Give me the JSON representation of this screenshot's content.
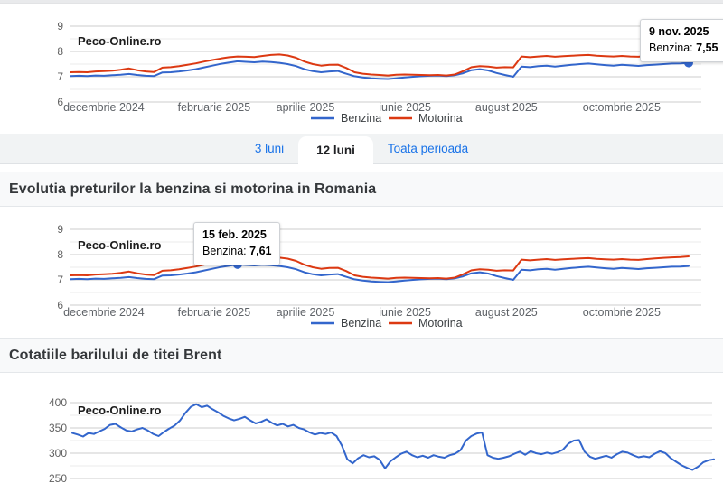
{
  "brand": "Peco-Online.ro",
  "tabs": [
    {
      "label": "3 luni",
      "active": false
    },
    {
      "label": "12 luni",
      "active": true
    },
    {
      "label": "Toata perioada",
      "active": false
    }
  ],
  "sections": {
    "fuel_heading": "Evolutia preturilor la benzina si motorina in Romania",
    "brent_heading": "Cotatiile barilului de titei Brent"
  },
  "colors": {
    "benzina": "#3366cc",
    "motorina": "#dc3912",
    "link": "#1a73e8",
    "grid_major": "#cccccc",
    "grid_minor": "#ebebeb",
    "axis_text": "#616161"
  },
  "chart_data": [
    {
      "type": "line",
      "watermark": "Peco-Online.ro",
      "ylim": [
        6,
        9
      ],
      "yticks": [
        9,
        8,
        7,
        6
      ],
      "yticks_minor": [
        8.5,
        7.5,
        6.5
      ],
      "x_labels": [
        "decembrie 2024",
        "februarie 2025",
        "aprilie 2025",
        "iunie 2025",
        "august 2025",
        "octombrie 2025"
      ],
      "legend": [
        "Benzina",
        "Motorina"
      ],
      "series": [
        {
          "name": "Benzina",
          "color": "#3366cc",
          "values": [
            7.03,
            7.04,
            7.03,
            7.05,
            7.04,
            7.06,
            7.08,
            7.11,
            7.07,
            7.04,
            7.03,
            7.17,
            7.18,
            7.21,
            7.25,
            7.3,
            7.37,
            7.44,
            7.51,
            7.56,
            7.61,
            7.59,
            7.57,
            7.6,
            7.58,
            7.55,
            7.5,
            7.42,
            7.3,
            7.22,
            7.18,
            7.21,
            7.23,
            7.12,
            7.02,
            6.97,
            6.94,
            6.92,
            6.91,
            6.94,
            6.97,
            7.0,
            7.02,
            7.04,
            7.05,
            7.03,
            7.06,
            7.14,
            7.26,
            7.3,
            7.25,
            7.15,
            7.07,
            7.0,
            7.4,
            7.38,
            7.42,
            7.44,
            7.4,
            7.44,
            7.47,
            7.5,
            7.52,
            7.49,
            7.46,
            7.44,
            7.47,
            7.45,
            7.43,
            7.46,
            7.48,
            7.5,
            7.52,
            7.53,
            7.55
          ]
        },
        {
          "name": "Motorina",
          "color": "#dc3912",
          "values": [
            7.18,
            7.19,
            7.18,
            7.21,
            7.22,
            7.24,
            7.28,
            7.33,
            7.26,
            7.21,
            7.19,
            7.36,
            7.38,
            7.42,
            7.47,
            7.53,
            7.6,
            7.66,
            7.72,
            7.77,
            7.8,
            7.79,
            7.78,
            7.82,
            7.86,
            7.88,
            7.84,
            7.75,
            7.6,
            7.5,
            7.44,
            7.47,
            7.48,
            7.35,
            7.18,
            7.12,
            7.09,
            7.07,
            7.05,
            7.08,
            7.09,
            7.08,
            7.07,
            7.06,
            7.07,
            7.05,
            7.09,
            7.22,
            7.38,
            7.42,
            7.4,
            7.36,
            7.38,
            7.37,
            7.8,
            7.77,
            7.8,
            7.82,
            7.79,
            7.81,
            7.83,
            7.85,
            7.86,
            7.83,
            7.81,
            7.8,
            7.82,
            7.8,
            7.79,
            7.82,
            7.85,
            7.87,
            7.89,
            7.9,
            7.93
          ]
        }
      ],
      "tooltip": {
        "date": "9 nov. 2025",
        "series_label": "Benzina:",
        "value": "7,55",
        "point_index": 74,
        "series_index": 0
      }
    },
    {
      "type": "line",
      "watermark": "Peco-Online.ro",
      "ylim": [
        6,
        9
      ],
      "yticks": [
        9,
        8,
        7,
        6
      ],
      "yticks_minor": [
        8.5,
        7.5,
        6.5
      ],
      "x_labels": [
        "decembrie 2024",
        "februarie 2025",
        "aprilie 2025",
        "iunie 2025",
        "august 2025",
        "octombrie 2025"
      ],
      "legend": [
        "Benzina",
        "Motorina"
      ],
      "series": [
        {
          "name": "Benzina",
          "color": "#3366cc",
          "values": [
            7.03,
            7.04,
            7.03,
            7.05,
            7.04,
            7.06,
            7.08,
            7.11,
            7.07,
            7.04,
            7.03,
            7.17,
            7.18,
            7.21,
            7.25,
            7.3,
            7.37,
            7.44,
            7.51,
            7.56,
            7.61,
            7.59,
            7.57,
            7.6,
            7.58,
            7.55,
            7.5,
            7.42,
            7.3,
            7.22,
            7.18,
            7.21,
            7.23,
            7.12,
            7.02,
            6.97,
            6.94,
            6.92,
            6.91,
            6.94,
            6.97,
            7.0,
            7.02,
            7.04,
            7.05,
            7.03,
            7.06,
            7.14,
            7.26,
            7.3,
            7.25,
            7.15,
            7.07,
            7.0,
            7.4,
            7.38,
            7.42,
            7.44,
            7.4,
            7.44,
            7.47,
            7.5,
            7.52,
            7.49,
            7.46,
            7.44,
            7.47,
            7.45,
            7.43,
            7.46,
            7.48,
            7.5,
            7.52,
            7.53,
            7.55
          ]
        },
        {
          "name": "Motorina",
          "color": "#dc3912",
          "values": [
            7.18,
            7.19,
            7.18,
            7.21,
            7.22,
            7.24,
            7.28,
            7.33,
            7.26,
            7.21,
            7.19,
            7.36,
            7.38,
            7.42,
            7.47,
            7.53,
            7.6,
            7.66,
            7.72,
            7.77,
            7.8,
            7.79,
            7.78,
            7.82,
            7.86,
            7.88,
            7.84,
            7.75,
            7.6,
            7.5,
            7.44,
            7.47,
            7.48,
            7.35,
            7.18,
            7.12,
            7.09,
            7.07,
            7.05,
            7.08,
            7.09,
            7.08,
            7.07,
            7.06,
            7.07,
            7.05,
            7.09,
            7.22,
            7.38,
            7.42,
            7.4,
            7.36,
            7.38,
            7.37,
            7.8,
            7.77,
            7.8,
            7.82,
            7.79,
            7.81,
            7.83,
            7.85,
            7.86,
            7.83,
            7.81,
            7.8,
            7.82,
            7.8,
            7.79,
            7.82,
            7.85,
            7.87,
            7.89,
            7.9,
            7.93
          ]
        }
      ],
      "tooltip": {
        "date": "15 feb. 2025",
        "series_label": "Benzina:",
        "value": "7,61",
        "point_index": 20,
        "series_index": 0
      }
    },
    {
      "type": "line",
      "watermark": "Peco-Online.ro",
      "ylim": [
        250,
        410
      ],
      "yticks": [
        400,
        350,
        300,
        250
      ],
      "yticks_minor": [
        375,
        325,
        275
      ],
      "x_labels": [],
      "legend": [],
      "series": [
        {
          "name": "Brent",
          "color": "#3366cc",
          "values": [
            340,
            337,
            333,
            340,
            338,
            343,
            348,
            356,
            358,
            351,
            345,
            343,
            347,
            350,
            345,
            338,
            334,
            342,
            349,
            355,
            365,
            380,
            392,
            397,
            391,
            394,
            387,
            381,
            374,
            369,
            365,
            368,
            372,
            365,
            359,
            362,
            367,
            360,
            355,
            358,
            353,
            356,
            350,
            347,
            341,
            337,
            340,
            338,
            341,
            334,
            315,
            288,
            280,
            290,
            296,
            292,
            294,
            287,
            270,
            284,
            292,
            299,
            303,
            296,
            292,
            295,
            291,
            296,
            293,
            291,
            296,
            299,
            306,
            325,
            334,
            339,
            341,
            296,
            291,
            289,
            291,
            294,
            299,
            303,
            297,
            304,
            300,
            298,
            301,
            299,
            302,
            307,
            319,
            325,
            326,
            303,
            293,
            289,
            292,
            295,
            291,
            298,
            303,
            301,
            296,
            292,
            294,
            292,
            299,
            304,
            300,
            290,
            283,
            276,
            271,
            267,
            273,
            282,
            286,
            288
          ]
        }
      ]
    }
  ]
}
